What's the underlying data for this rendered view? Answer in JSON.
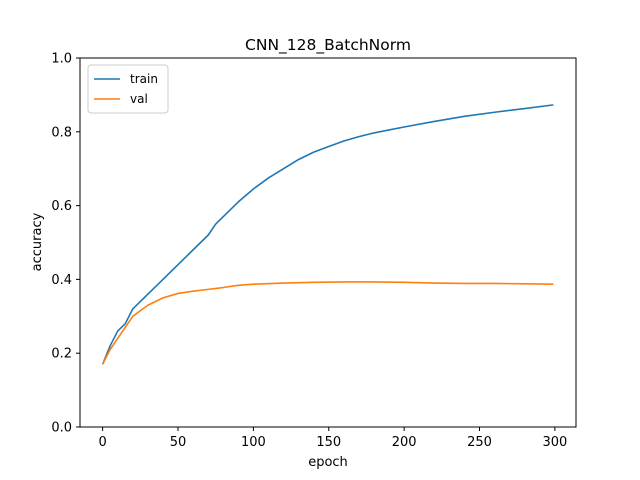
{
  "chart_data": {
    "type": "line",
    "title": "CNN_128_BatchNorm",
    "xlabel": "epoch",
    "ylabel": "accuracy",
    "xlim": [
      -15,
      314
    ],
    "ylim": [
      0.0,
      1.0
    ],
    "xticks": [
      0,
      50,
      100,
      150,
      200,
      250,
      300
    ],
    "yticks": [
      0.0,
      0.2,
      0.4,
      0.6,
      0.8,
      1.0
    ],
    "xtick_labels": [
      "0",
      "50",
      "100",
      "150",
      "200",
      "250",
      "300"
    ],
    "ytick_labels": [
      "0.0",
      "0.2",
      "0.4",
      "0.6",
      "0.8",
      "1.0"
    ],
    "grid": false,
    "legend_position": "top-left",
    "series": [
      {
        "name": "train",
        "color": "#1f77b4",
        "x": [
          0,
          5,
          10,
          15,
          20,
          25,
          30,
          40,
          50,
          60,
          65,
          70,
          75,
          80,
          90,
          100,
          110,
          120,
          130,
          140,
          150,
          160,
          170,
          180,
          190,
          200,
          220,
          240,
          260,
          280,
          299
        ],
        "y": [
          0.17,
          0.22,
          0.26,
          0.28,
          0.32,
          0.34,
          0.36,
          0.4,
          0.44,
          0.48,
          0.5,
          0.52,
          0.55,
          0.57,
          0.61,
          0.645,
          0.675,
          0.7,
          0.725,
          0.745,
          0.76,
          0.775,
          0.787,
          0.797,
          0.805,
          0.813,
          0.828,
          0.842,
          0.853,
          0.863,
          0.873
        ]
      },
      {
        "name": "val",
        "color": "#ff7f0e",
        "x": [
          0,
          5,
          10,
          15,
          20,
          25,
          30,
          40,
          50,
          60,
          70,
          80,
          90,
          100,
          120,
          140,
          160,
          180,
          200,
          220,
          240,
          260,
          280,
          299
        ],
        "y": [
          0.17,
          0.21,
          0.24,
          0.27,
          0.3,
          0.315,
          0.33,
          0.35,
          0.362,
          0.368,
          0.373,
          0.378,
          0.384,
          0.387,
          0.39,
          0.392,
          0.393,
          0.393,
          0.392,
          0.39,
          0.389,
          0.389,
          0.388,
          0.387
        ]
      }
    ]
  }
}
